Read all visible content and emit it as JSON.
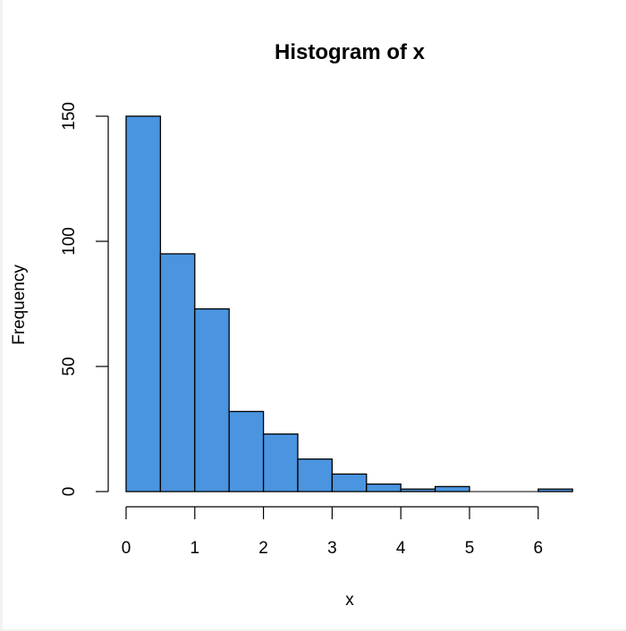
{
  "chart_data": {
    "type": "bar",
    "title": "Histogram of x",
    "xlabel": "x",
    "ylabel": "Frequency",
    "bin_width": 0.5,
    "bins": [
      {
        "from": 0.0,
        "to": 0.5,
        "count": 150
      },
      {
        "from": 0.5,
        "to": 1.0,
        "count": 95
      },
      {
        "from": 1.0,
        "to": 1.5,
        "count": 73
      },
      {
        "from": 1.5,
        "to": 2.0,
        "count": 32
      },
      {
        "from": 2.0,
        "to": 2.5,
        "count": 23
      },
      {
        "from": 2.5,
        "to": 3.0,
        "count": 13
      },
      {
        "from": 3.0,
        "to": 3.5,
        "count": 7
      },
      {
        "from": 3.5,
        "to": 4.0,
        "count": 3
      },
      {
        "from": 4.0,
        "to": 4.5,
        "count": 1
      },
      {
        "from": 4.5,
        "to": 5.0,
        "count": 2
      },
      {
        "from": 5.0,
        "to": 5.5,
        "count": 0
      },
      {
        "from": 5.5,
        "to": 6.0,
        "count": 0
      },
      {
        "from": 6.0,
        "to": 6.5,
        "count": 1
      }
    ],
    "categories": [
      "0-0.5",
      "0.5-1",
      "1-1.5",
      "1.5-2",
      "2-2.5",
      "2.5-3",
      "3-3.5",
      "3.5-4",
      "4-4.5",
      "4.5-5",
      "5-5.5",
      "5.5-6",
      "6-6.5"
    ],
    "values": [
      150,
      95,
      73,
      32,
      23,
      13,
      7,
      3,
      1,
      2,
      0,
      0,
      1
    ],
    "xticks": [
      "0",
      "1",
      "2",
      "3",
      "4",
      "5",
      "6"
    ],
    "yticks": [
      "0",
      "50",
      "100",
      "150"
    ],
    "xlim": [
      0,
      6.5
    ],
    "ylim": [
      0,
      150
    ],
    "grid": false,
    "legend": null,
    "colors": {
      "bar_fill": "#4a94e0",
      "bar_stroke": "#000000"
    }
  }
}
